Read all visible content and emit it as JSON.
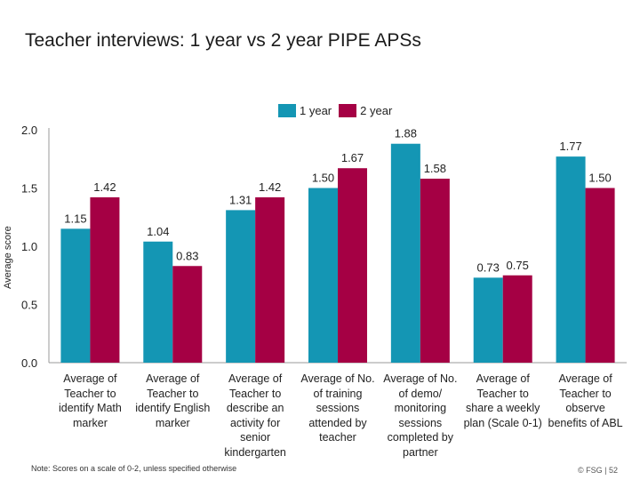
{
  "title": "Teacher interviews: 1 year vs 2 year PIPE APSs",
  "note": "Note: Scores on a scale of 0-2, unless specified otherwise",
  "footer": "© FSG | 52",
  "colors": {
    "year1": "#1496b4",
    "year2": "#a50044",
    "axis": "#999999"
  },
  "chart_data": {
    "type": "bar",
    "title": "Teacher interviews: 1 year vs 2 year PIPE APSs",
    "ylabel": "Average score",
    "ylim": [
      0,
      2.0
    ],
    "yticks": [
      "0.0",
      "0.5",
      "1.0",
      "1.5",
      "2.0"
    ],
    "legend_position": "top",
    "categories": [
      "Average of Teacher to identify Math marker",
      "Average of Teacher to identify English marker",
      "Average of Teacher to describe an activity for senior kindergarten",
      "Average of No. of training sessions attended by teacher",
      "Average of No. of demo/ monitoring sessions completed by partner",
      "Average of Teacher to share a weekly plan (Scale 0-1)",
      "Average of Teacher to observe benefits of ABL"
    ],
    "series": [
      {
        "name": "1 year",
        "values": [
          1.15,
          1.04,
          1.31,
          1.5,
          1.88,
          0.73,
          1.77
        ],
        "labels": [
          "1.15",
          "1.04",
          "1.31",
          "1.50",
          "1.88",
          "0.73",
          "1.77"
        ]
      },
      {
        "name": "2 year",
        "values": [
          1.42,
          0.83,
          1.42,
          1.67,
          1.58,
          0.75,
          1.5
        ],
        "labels": [
          "1.42",
          "0.83",
          "1.42",
          "1.67",
          "1.58",
          "0.75",
          "1.50"
        ]
      }
    ]
  }
}
